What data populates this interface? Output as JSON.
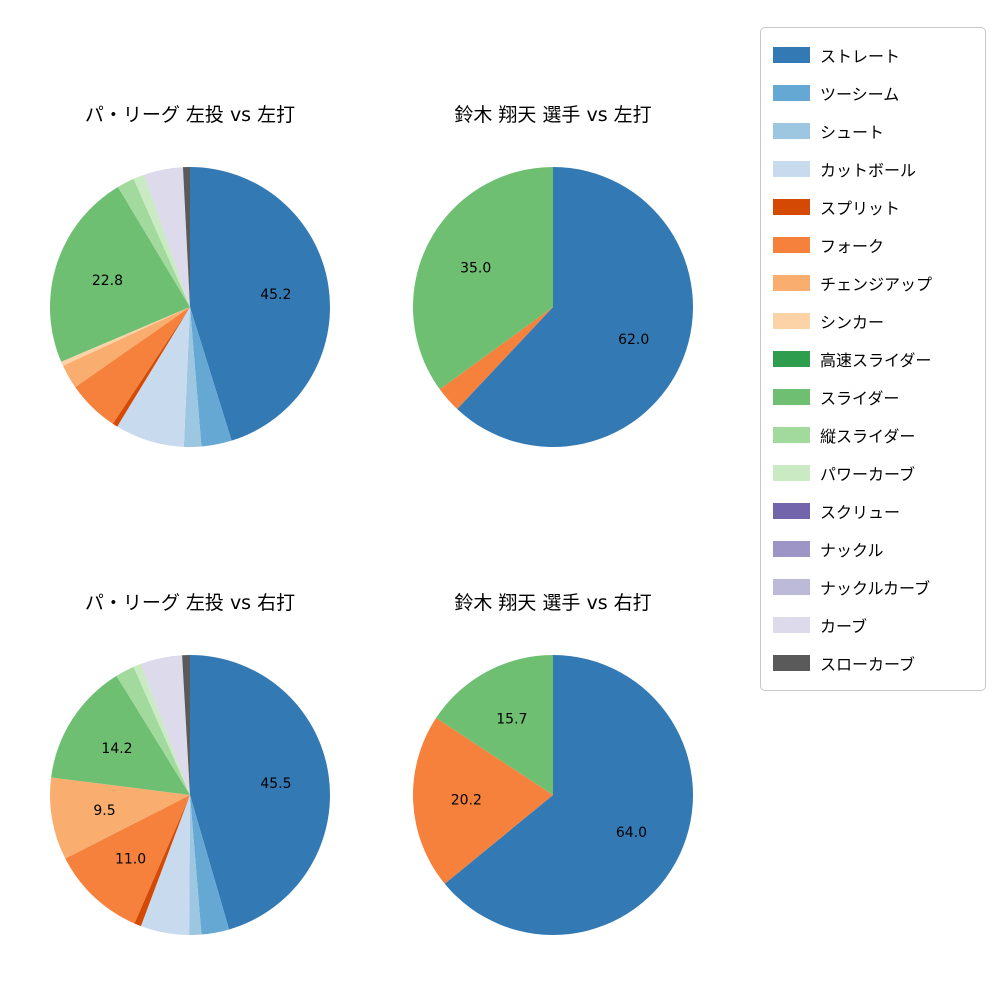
{
  "figure": {
    "background": "#ffffff"
  },
  "legend": {
    "items": [
      {
        "id": "straight",
        "label": "ストレート",
        "color": "#337ab5"
      },
      {
        "id": "two-seam",
        "label": "ツーシーム",
        "color": "#66a8d4"
      },
      {
        "id": "shuuto",
        "label": "シュート",
        "color": "#9dc6e0"
      },
      {
        "id": "cut-ball",
        "label": "カットボール",
        "color": "#c8daee"
      },
      {
        "id": "split",
        "label": "スプリット",
        "color": "#d44a04"
      },
      {
        "id": "fork",
        "label": "フォーク",
        "color": "#f5813c"
      },
      {
        "id": "changeup",
        "label": "チェンジアップ",
        "color": "#f9ae6f"
      },
      {
        "id": "sinker",
        "label": "シンカー",
        "color": "#fbd3a7"
      },
      {
        "id": "fast-slider",
        "label": "高速スライダー",
        "color": "#2e9e4e"
      },
      {
        "id": "slider",
        "label": "スライダー",
        "color": "#6fbf73"
      },
      {
        "id": "vertical-slider",
        "label": "縦スライダー",
        "color": "#a2d99c"
      },
      {
        "id": "power-curve",
        "label": "パワーカーブ",
        "color": "#c9eac2"
      },
      {
        "id": "screw",
        "label": "スクリュー",
        "color": "#7365ab"
      },
      {
        "id": "knuckle",
        "label": "ナックル",
        "color": "#9d95c6"
      },
      {
        "id": "knuckle-curve",
        "label": "ナックルカーブ",
        "color": "#bdb9d9"
      },
      {
        "id": "curve",
        "label": "カーブ",
        "color": "#dcdaeb"
      },
      {
        "id": "slow-curve",
        "label": "スローカーブ",
        "color": "#5a5a5a"
      }
    ]
  },
  "chart_data": [
    {
      "type": "pie",
      "title": "パ・リーグ 左投 vs 左打",
      "start_angle": "12-oclock",
      "direction": "clockwise",
      "slices": [
        {
          "id": "straight",
          "name": "ストレート",
          "value": 45.2,
          "label": "45.2",
          "color": "#337ab5"
        },
        {
          "id": "two-seam",
          "name": "ツーシーム",
          "value": 3.5,
          "label": "",
          "color": "#66a8d4"
        },
        {
          "id": "shuuto",
          "name": "シュート",
          "value": 2.0,
          "label": "",
          "color": "#9dc6e0"
        },
        {
          "id": "cut-ball",
          "name": "カットボール",
          "value": 8.0,
          "label": "",
          "color": "#c8daee"
        },
        {
          "id": "split",
          "name": "スプリット",
          "value": 0.6,
          "label": "",
          "color": "#d44a04"
        },
        {
          "id": "fork",
          "name": "フォーク",
          "value": 6.0,
          "label": "",
          "color": "#f5813c"
        },
        {
          "id": "changeup",
          "name": "チェンジアップ",
          "value": 2.8,
          "label": "",
          "color": "#f9ae6f"
        },
        {
          "id": "sinker",
          "name": "シンカー",
          "value": 0.5,
          "label": "",
          "color": "#fbd3a7"
        },
        {
          "id": "slider",
          "name": "スライダー",
          "value": 22.8,
          "label": "22.8",
          "color": "#6fbf73"
        },
        {
          "id": "vertical-slider",
          "name": "縦スライダー",
          "value": 2.0,
          "label": "",
          "color": "#a2d99c"
        },
        {
          "id": "power-curve",
          "name": "パワーカーブ",
          "value": 1.3,
          "label": "",
          "color": "#c9eac2"
        },
        {
          "id": "curve",
          "name": "カーブ",
          "value": 4.5,
          "label": "",
          "color": "#dcdaeb"
        },
        {
          "id": "slow-curve",
          "name": "スローカーブ",
          "value": 0.8,
          "label": "",
          "color": "#5a5a5a"
        }
      ]
    },
    {
      "type": "pie",
      "title": "鈴木 翔天 選手 vs 左打",
      "start_angle": "12-oclock",
      "direction": "clockwise",
      "slices": [
        {
          "id": "straight",
          "name": "ストレート",
          "value": 62.0,
          "label": "62.0",
          "color": "#337ab5"
        },
        {
          "id": "fork",
          "name": "フォーク",
          "value": 3.0,
          "label": "",
          "color": "#f5813c"
        },
        {
          "id": "slider",
          "name": "スライダー",
          "value": 35.0,
          "label": "35.0",
          "color": "#6fbf73"
        }
      ]
    },
    {
      "type": "pie",
      "title": "パ・リーグ 左投 vs 右打",
      "start_angle": "12-oclock",
      "direction": "clockwise",
      "slices": [
        {
          "id": "straight",
          "name": "ストレート",
          "value": 45.5,
          "label": "45.5",
          "color": "#337ab5"
        },
        {
          "id": "two-seam",
          "name": "ツーシーム",
          "value": 3.2,
          "label": "",
          "color": "#66a8d4"
        },
        {
          "id": "shuuto",
          "name": "シュート",
          "value": 1.4,
          "label": "",
          "color": "#9dc6e0"
        },
        {
          "id": "cut-ball",
          "name": "カットボール",
          "value": 5.6,
          "label": "",
          "color": "#c8daee"
        },
        {
          "id": "split",
          "name": "スプリット",
          "value": 0.8,
          "label": "",
          "color": "#d44a04"
        },
        {
          "id": "fork",
          "name": "フォーク",
          "value": 11.0,
          "label": "11.0",
          "color": "#f5813c"
        },
        {
          "id": "changeup",
          "name": "チェンジアップ",
          "value": 9.5,
          "label": "9.5",
          "color": "#f9ae6f"
        },
        {
          "id": "slider",
          "name": "スライダー",
          "value": 14.2,
          "label": "14.2",
          "color": "#6fbf73"
        },
        {
          "id": "vertical-slider",
          "name": "縦スライダー",
          "value": 2.2,
          "label": "",
          "color": "#a2d99c"
        },
        {
          "id": "power-curve",
          "name": "パワーカーブ",
          "value": 0.9,
          "label": "",
          "color": "#c9eac2"
        },
        {
          "id": "curve",
          "name": "カーブ",
          "value": 4.8,
          "label": "",
          "color": "#dcdaeb"
        },
        {
          "id": "slow-curve",
          "name": "スローカーブ",
          "value": 0.9,
          "label": "",
          "color": "#5a5a5a"
        }
      ]
    },
    {
      "type": "pie",
      "title": "鈴木 翔天 選手 vs 右打",
      "start_angle": "12-oclock",
      "direction": "clockwise",
      "slices": [
        {
          "id": "straight",
          "name": "ストレート",
          "value": 64.0,
          "label": "64.0",
          "color": "#337ab5"
        },
        {
          "id": "fork",
          "name": "フォーク",
          "value": 20.2,
          "label": "20.2",
          "color": "#f5813c"
        },
        {
          "id": "slider",
          "name": "スライダー",
          "value": 15.7,
          "label": "15.7",
          "color": "#6fbf73"
        }
      ]
    }
  ]
}
